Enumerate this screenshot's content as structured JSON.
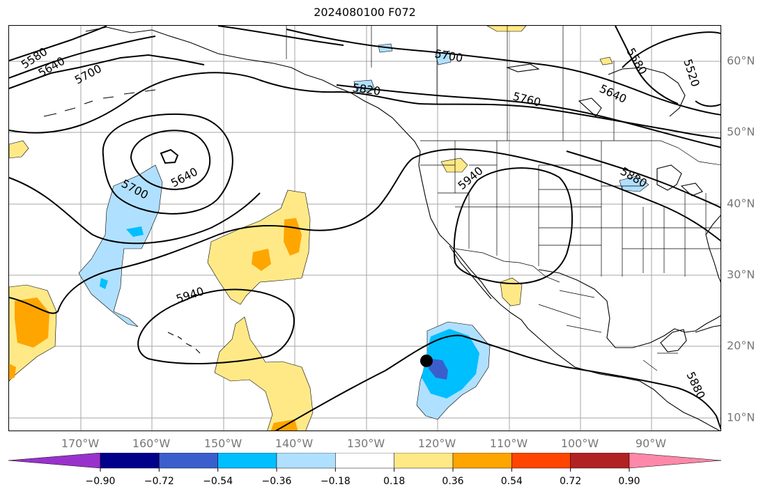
{
  "title": "2024080100 F072",
  "longitude_labels": [
    "170°W",
    "160°W",
    "150°W",
    "140°W",
    "130°W",
    "120°W",
    "110°W",
    "100°W",
    "90°W"
  ],
  "latitude_labels": [
    "60°N",
    "50°N",
    "40°N",
    "30°N",
    "20°N",
    "10°N"
  ],
  "contour_labels": [
    "5580",
    "5640",
    "5700",
    "5700",
    "5520",
    "5580",
    "5640",
    "5760",
    "5820",
    "5640",
    "5700",
    "5940",
    "5880",
    "5940",
    "5880"
  ],
  "colorbar": {
    "ticks": [
      "−0.90",
      "−0.72",
      "−0.54",
      "−0.36",
      "−0.18",
      "0.18",
      "0.36",
      "0.54",
      "0.72",
      "0.90"
    ],
    "colors": [
      "#9932cc",
      "#00008b",
      "#3a5fcd",
      "#00bfff",
      "#b0e0ff",
      "#ffffff",
      "#ffe987",
      "#ffa500",
      "#ff4500",
      "#b22222",
      "#ff88aa"
    ]
  },
  "storm_marker": {
    "lat": 18,
    "lon": -120.5
  }
}
